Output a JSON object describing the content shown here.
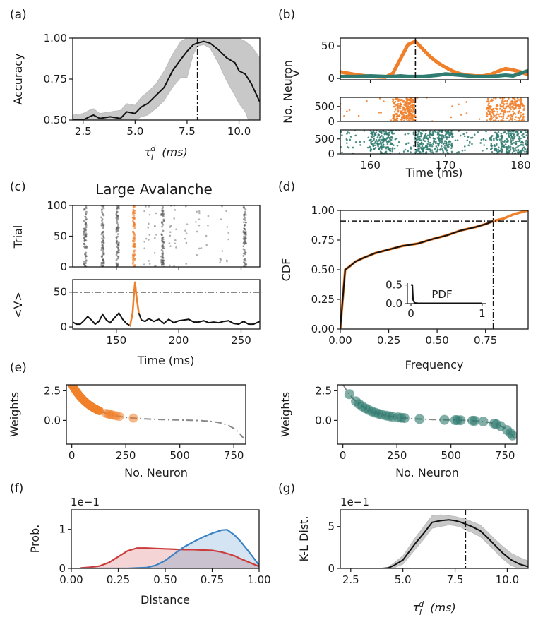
{
  "figure": {
    "colors": {
      "orange": "#f07f2a",
      "teal": "#2f7b70",
      "red": "#cc3b3b",
      "blue": "#3b82c4",
      "gray_band": "#c8c8c8",
      "line": "#111111"
    }
  },
  "chart_data": [
    {
      "id": "a",
      "panel_label": "(a)",
      "type": "line",
      "title": "",
      "xlabel": "τ_I^d (ms)",
      "xlabel_main": "τ",
      "xlabel_sub": "I",
      "xlabel_sup": "d",
      "xlabel_unit": "(ms)",
      "ylabel": "Accuracy",
      "xlim": [
        2.0,
        11.0
      ],
      "ylim": [
        0.5,
        1.0
      ],
      "xticks": [
        "2.5",
        "5.0",
        "7.5",
        "10.0"
      ],
      "xtick_values": [
        2.5,
        5.0,
        7.5,
        10.0
      ],
      "yticks": [
        "0.50",
        "0.75",
        "1.00"
      ],
      "ytick_values": [
        0.5,
        0.75,
        1.0
      ],
      "vline": 8.0,
      "x": [
        2.0,
        2.5,
        2.8,
        3.0,
        3.3,
        3.8,
        4.3,
        4.6,
        5.0,
        5.3,
        5.6,
        6.0,
        6.4,
        6.8,
        7.2,
        7.5,
        7.8,
        8.0,
        8.3,
        8.6,
        9.0,
        9.4,
        9.8,
        10.0,
        10.3,
        10.6,
        11.0
      ],
      "mean": [
        0.5,
        0.5,
        0.52,
        0.53,
        0.51,
        0.52,
        0.51,
        0.55,
        0.54,
        0.58,
        0.6,
        0.65,
        0.7,
        0.8,
        0.87,
        0.92,
        0.96,
        0.97,
        0.98,
        0.97,
        0.93,
        0.88,
        0.85,
        0.8,
        0.78,
        0.72,
        0.61
      ],
      "upper": [
        0.53,
        0.54,
        0.56,
        0.57,
        0.54,
        0.55,
        0.56,
        0.6,
        0.59,
        0.64,
        0.67,
        0.72,
        0.8,
        0.9,
        0.98,
        1.0,
        1.0,
        1.0,
        1.0,
        1.0,
        1.0,
        1.0,
        1.0,
        1.0,
        0.98,
        0.95,
        0.88
      ],
      "lower": [
        0.47,
        0.48,
        0.49,
        0.5,
        0.49,
        0.49,
        0.48,
        0.5,
        0.5,
        0.52,
        0.53,
        0.57,
        0.62,
        0.7,
        0.76,
        0.76,
        0.9,
        0.95,
        0.96,
        0.94,
        0.85,
        0.74,
        0.65,
        0.6,
        0.55,
        0.45,
        0.35
      ],
      "series": [
        {
          "name": "accuracy",
          "color": "#111111"
        }
      ]
    },
    {
      "id": "b",
      "panel_label": "(b)",
      "type": "line+scatter",
      "xlabel": "Time (ms)",
      "ylabel": "No. Neuron",
      "ylabel_top": "V",
      "xlim": [
        156,
        181
      ],
      "xticks": [
        "160",
        "170",
        "180"
      ],
      "xtick_values": [
        160,
        170,
        180
      ],
      "vline": 166,
      "top": {
        "ylim": [
          -2,
          62
        ],
        "yticks": [
          "0",
          "50"
        ],
        "ytick_values": [
          0,
          50
        ],
        "x": [
          156,
          158,
          160,
          162,
          163,
          164,
          165,
          166,
          167,
          168,
          169,
          170,
          171,
          172,
          173,
          174,
          175,
          176,
          177,
          178,
          179,
          180,
          181
        ],
        "orange": [
          10,
          6,
          3,
          2,
          8,
          30,
          52,
          57,
          45,
          33,
          24,
          17,
          11,
          7,
          5,
          4,
          4,
          6,
          11,
          15,
          13,
          10,
          6
        ],
        "teal": [
          3,
          3,
          4,
          3,
          3,
          4,
          3,
          3,
          3,
          4,
          5,
          7,
          6,
          5,
          4,
          3,
          3,
          3,
          4,
          5,
          4,
          8,
          12
        ]
      },
      "raster_orange": {
        "ylim": [
          0,
          800
        ],
        "yticks": [
          "0",
          "500"
        ],
        "ytick_values": [
          0,
          500
        ],
        "clusters": [
          [
            163,
            166,
            260
          ],
          [
            175.5,
            180.5,
            240
          ]
        ],
        "sparse": 30
      },
      "raster_teal": {
        "ylim": [
          0,
          800
        ],
        "yticks": [
          "0",
          "500"
        ],
        "ytick_values": [
          0,
          500
        ],
        "clusters": [
          [
            160,
            163,
            150
          ],
          [
            166,
            171,
            230
          ],
          [
            176,
            181,
            200
          ]
        ],
        "sparse": 160
      }
    },
    {
      "id": "c",
      "panel_label": "(c)",
      "title": "Large Avalanche",
      "type": "raster+line",
      "xlabel": "Time (ms)",
      "xlim": [
        115,
        265
      ],
      "xticks": [
        "150",
        "200",
        "250"
      ],
      "xtick_values": [
        150,
        200,
        250
      ],
      "raster": {
        "ylabel": "Trial",
        "ylim": [
          0,
          100
        ],
        "yticks": [
          "0",
          "50",
          "100"
        ],
        "ytick_values": [
          0,
          50,
          100
        ],
        "dense_columns": [
          125,
          139,
          151,
          187,
          253
        ],
        "highlight_column": 164,
        "sparse_columns": [
          173,
          176,
          181,
          193,
          197,
          206,
          214,
          217,
          223,
          234,
          239
        ]
      },
      "mean_v": {
        "ylabel": "<V>",
        "ylim": [
          -3,
          68
        ],
        "yticks": [
          "0",
          "50"
        ],
        "ytick_values": [
          0,
          50
        ],
        "hline": 50,
        "x": [
          115,
          118,
          121,
          124,
          127,
          130,
          133,
          136,
          139,
          142,
          145,
          148,
          152,
          155,
          158,
          161,
          163,
          164,
          165,
          166,
          168,
          170,
          173,
          176,
          180,
          184,
          188,
          192,
          196,
          200,
          204,
          208,
          212,
          216,
          220,
          224,
          228,
          232,
          236,
          240,
          244,
          248,
          252,
          256,
          260,
          265
        ],
        "y": [
          7,
          4,
          4,
          9,
          15,
          10,
          4,
          8,
          18,
          10,
          6,
          12,
          20,
          11,
          5,
          2,
          20,
          45,
          65,
          45,
          20,
          10,
          8,
          12,
          8,
          11,
          5,
          11,
          6,
          9,
          10,
          11,
          7,
          7,
          9,
          6,
          7,
          6,
          8,
          9,
          5,
          4,
          8,
          4,
          4,
          8
        ],
        "highlight_range": [
          160,
          169
        ]
      }
    },
    {
      "id": "d",
      "panel_label": "(d)",
      "type": "line",
      "xlabel": "Frequency",
      "ylabel": "CDF",
      "xlim": [
        0.0,
        0.97
      ],
      "ylim": [
        0.0,
        1.0
      ],
      "xticks": [
        "0.00",
        "0.25",
        "0.50",
        "0.75"
      ],
      "xtick_values": [
        0.0,
        0.25,
        0.5,
        0.75
      ],
      "yticks": [
        "0.00",
        "0.25",
        "0.50",
        "0.75",
        "1.00"
      ],
      "ytick_values": [
        0.0,
        0.25,
        0.5,
        0.75,
        1.0
      ],
      "vline": 0.79,
      "hline": 0.91,
      "x": [
        0.0,
        0.01,
        0.025,
        0.05,
        0.08,
        0.12,
        0.18,
        0.25,
        0.32,
        0.4,
        0.48,
        0.55,
        0.62,
        0.7,
        0.76,
        0.79,
        0.84,
        0.9,
        0.97
      ],
      "y": [
        0.0,
        0.2,
        0.5,
        0.53,
        0.57,
        0.6,
        0.64,
        0.67,
        0.7,
        0.72,
        0.76,
        0.79,
        0.83,
        0.86,
        0.89,
        0.91,
        0.93,
        0.97,
        1.0
      ],
      "inset": {
        "label": "PDF",
        "xticks": [
          "0",
          "1"
        ],
        "xtick_values": [
          0,
          1
        ],
        "yticks": [
          "0.0",
          "0.5"
        ],
        "ytick_values": [
          0.0,
          0.5
        ],
        "xlim": [
          -0.05,
          1.05
        ],
        "ylim": [
          0,
          0.55
        ],
        "x": [
          0,
          0.02,
          0.03,
          0.05,
          0.1,
          1.0
        ],
        "y": [
          0.5,
          0.5,
          0.1,
          0.02,
          0.01,
          0.01
        ]
      }
    },
    {
      "id": "e-left",
      "panel_label": "(e)",
      "type": "scatter",
      "xlabel": "No. Neuron",
      "ylabel": "Weights",
      "xlim": [
        -25,
        805
      ],
      "ylim": [
        -2.0,
        3.0
      ],
      "xticks": [
        "0",
        "250",
        "500",
        "750"
      ],
      "xtick_values": [
        0,
        250,
        500,
        750
      ],
      "yticks": [
        "0.0",
        "2.5"
      ],
      "ytick_values": [
        0.0,
        2.5
      ],
      "color": "#f07f2a",
      "highlight_range": [
        0,
        290
      ]
    },
    {
      "id": "e-right",
      "type": "scatter",
      "xlabel": "No. Neuron",
      "ylabel": "Weights",
      "xlim": [
        -25,
        805
      ],
      "ylim": [
        -2.0,
        3.0
      ],
      "xticks": [
        "0",
        "250",
        "500",
        "750"
      ],
      "xtick_values": [
        0,
        250,
        500,
        750
      ],
      "yticks": [
        "0.0",
        "2.5"
      ],
      "ytick_values": [
        0.0,
        2.5
      ],
      "color": "#2f7b70",
      "points": [
        30,
        60,
        75,
        90,
        105,
        120,
        135,
        150,
        165,
        180,
        200,
        215,
        230,
        255,
        270,
        285,
        355,
        470,
        520,
        530,
        545,
        600,
        610,
        650,
        700,
        710,
        730,
        760,
        775,
        785
      ]
    },
    {
      "id": "f",
      "panel_label": "(f)",
      "type": "area",
      "xlabel": "Distance",
      "ylabel": "Prob.",
      "scale_label": "1e−1",
      "xlim": [
        0.0,
        1.0
      ],
      "ylim": [
        0,
        1.5
      ],
      "xticks": [
        "0.00",
        "0.25",
        "0.50",
        "0.75",
        "1.00"
      ],
      "xtick_values": [
        0.0,
        0.25,
        0.5,
        0.75,
        1.0
      ],
      "yticks": [
        "0",
        "1"
      ],
      "ytick_values": [
        0,
        1
      ],
      "x": [
        0.05,
        0.1,
        0.15,
        0.2,
        0.25,
        0.3,
        0.35,
        0.4,
        0.45,
        0.5,
        0.55,
        0.6,
        0.65,
        0.7,
        0.75,
        0.8,
        0.83,
        0.87,
        0.9,
        0.95,
        1.0
      ],
      "series": [
        {
          "name": "red",
          "color": "#cc3b3b",
          "values": [
            0.01,
            0.03,
            0.06,
            0.15,
            0.3,
            0.45,
            0.52,
            0.52,
            0.51,
            0.5,
            0.49,
            0.48,
            0.48,
            0.47,
            0.46,
            0.42,
            0.38,
            0.32,
            0.25,
            0.15,
            0.05
          ]
        },
        {
          "name": "blue",
          "color": "#3b82c4",
          "values": [
            0.0,
            0.0,
            0.0,
            0.0,
            0.0,
            0.0,
            0.01,
            0.02,
            0.08,
            0.2,
            0.38,
            0.55,
            0.68,
            0.8,
            0.9,
            0.98,
            0.99,
            0.85,
            0.7,
            0.4,
            0.08
          ]
        }
      ]
    },
    {
      "id": "g",
      "panel_label": "(g)",
      "type": "line",
      "xlabel": "τ_I^d (ms)",
      "xlabel_main": "τ",
      "xlabel_sub": "I",
      "xlabel_sup": "d",
      "xlabel_unit": "(ms)",
      "ylabel": "K-L Dist.",
      "scale_label": "1e−1",
      "xlim": [
        2.0,
        11.0
      ],
      "ylim": [
        0,
        7
      ],
      "xticks": [
        "2.5",
        "5.0",
        "7.5",
        "10.0"
      ],
      "xtick_values": [
        2.5,
        5.0,
        7.5,
        10.0
      ],
      "yticks": [
        "0",
        "5"
      ],
      "ytick_values": [
        0,
        5
      ],
      "vline": 8.0,
      "x": [
        2.0,
        3.0,
        4.0,
        4.3,
        4.6,
        5.0,
        5.3,
        5.6,
        6.0,
        6.4,
        6.8,
        7.2,
        7.5,
        7.8,
        8.0,
        8.3,
        8.7,
        9.0,
        9.4,
        9.8,
        10.2,
        10.6,
        11.0
      ],
      "mean": [
        0,
        0,
        0,
        0.05,
        0.4,
        1.0,
        2.0,
        3.0,
        4.2,
        5.5,
        5.7,
        5.8,
        5.7,
        5.5,
        5.3,
        5.0,
        4.5,
        3.8,
        2.8,
        1.8,
        1.0,
        0.5,
        0.2
      ],
      "upper": [
        0,
        0,
        0,
        0.15,
        0.7,
        1.5,
        2.6,
        3.7,
        5.0,
        6.3,
        6.4,
        6.3,
        6.2,
        6.0,
        5.9,
        5.6,
        5.2,
        4.5,
        3.5,
        2.6,
        1.8,
        1.3,
        0.9
      ],
      "lower": [
        0,
        0,
        0,
        0,
        0.1,
        0.5,
        1.4,
        2.3,
        3.5,
        4.8,
        5.0,
        5.2,
        5.1,
        4.9,
        4.6,
        4.3,
        3.8,
        3.1,
        2.1,
        1.1,
        0.3,
        0.0,
        0.0
      ]
    }
  ]
}
